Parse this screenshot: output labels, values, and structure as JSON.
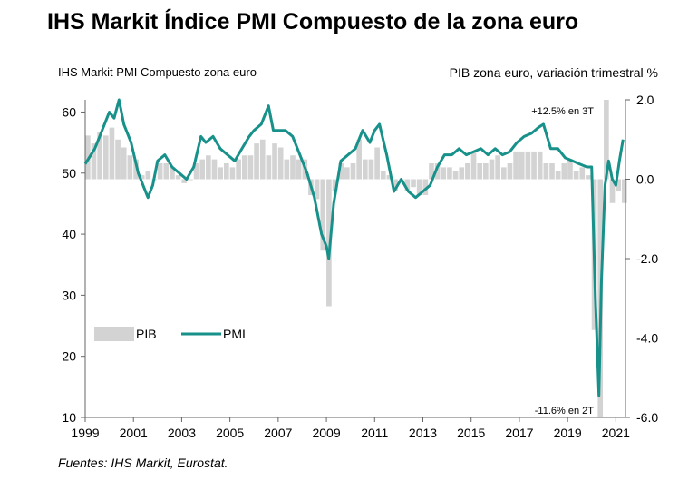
{
  "title": "IHS Markit Índice PMI Compuesto de la zona euro",
  "left_axis_label": "IHS Markit PMI Compuesto zona euro",
  "right_axis_label": "PIB zona euro, variación trimestral %",
  "source": "Fuentes: IHS Markit, Eurostat.",
  "colors": {
    "pmi": "#17918a",
    "gdp": "#d3d3d3",
    "axis": "#666666"
  },
  "chart_data": {
    "type": "bar+line",
    "x_ticks": [
      "1999",
      "2001",
      "2003",
      "2005",
      "2007",
      "2009",
      "2011",
      "2013",
      "2015",
      "2017",
      "2019",
      "2021"
    ],
    "y_left": {
      "ticks": [
        "60",
        "50",
        "40",
        "30",
        "20",
        "10"
      ],
      "range": [
        10,
        62
      ]
    },
    "y_right": {
      "ticks": [
        "2.0",
        "0.0",
        "-2.0",
        "-4.0",
        "-6.0"
      ],
      "range": [
        -6.0,
        2.0
      ]
    },
    "legend": [
      {
        "key": "gdp",
        "label": "PIB"
      },
      {
        "key": "pmi",
        "label": "PMI"
      }
    ],
    "annotations": [
      {
        "text": "+12.5% en 3T"
      },
      {
        "text": "-11.6% en 2T"
      }
    ],
    "series": [
      {
        "key": "pmi",
        "axis": "left",
        "x": [
          1999.0,
          1999.4,
          1999.8,
          2000.0,
          2000.2,
          2000.4,
          2000.6,
          2000.9,
          2001.2,
          2001.6,
          2001.8,
          2002.0,
          2002.3,
          2002.6,
          2002.9,
          2003.2,
          2003.5,
          2003.8,
          2004.0,
          2004.3,
          2004.6,
          2004.9,
          2005.2,
          2005.5,
          2005.8,
          2006.0,
          2006.3,
          2006.6,
          2006.8,
          2007.0,
          2007.3,
          2007.6,
          2007.9,
          2008.2,
          2008.5,
          2008.8,
          2009.0,
          2009.1,
          2009.3,
          2009.6,
          2009.9,
          2010.2,
          2010.5,
          2010.8,
          2011.0,
          2011.2,
          2011.5,
          2011.8,
          2012.1,
          2012.4,
          2012.7,
          2013.0,
          2013.3,
          2013.6,
          2013.9,
          2014.2,
          2014.5,
          2014.8,
          2015.1,
          2015.4,
          2015.7,
          2016.0,
          2016.3,
          2016.6,
          2016.9,
          2017.2,
          2017.5,
          2017.8,
          2018.0,
          2018.3,
          2018.6,
          2018.9,
          2019.2,
          2019.5,
          2019.8,
          2020.0,
          2020.15,
          2020.3,
          2020.4,
          2020.55,
          2020.7,
          2020.85,
          2021.0,
          2021.15,
          2021.3
        ],
        "values": [
          51.5,
          54,
          58,
          60,
          59,
          62,
          58,
          55,
          50,
          46,
          48,
          52,
          53,
          51,
          50,
          49,
          51,
          56,
          55,
          56,
          54,
          53,
          52,
          54,
          56,
          57,
          58,
          61,
          57,
          57,
          57,
          56,
          53,
          50,
          46,
          40,
          38,
          36,
          45,
          52,
          53,
          54,
          57,
          55,
          57,
          58,
          53,
          47,
          49,
          47,
          46,
          47,
          48,
          51,
          53,
          53,
          54,
          53,
          53.5,
          54,
          53,
          54,
          53,
          53.5,
          55,
          56,
          56.5,
          57.5,
          58,
          54,
          54,
          52.5,
          52,
          51.5,
          51,
          51,
          30,
          13.6,
          32,
          48,
          52,
          49,
          48,
          52,
          55.5
        ]
      },
      {
        "key": "gdp",
        "axis": "right",
        "x": [
          1999.0,
          1999.25,
          1999.5,
          1999.75,
          2000.0,
          2000.25,
          2000.5,
          2000.75,
          2001.0,
          2001.25,
          2001.5,
          2001.75,
          2002.0,
          2002.25,
          2002.5,
          2002.75,
          2003.0,
          2003.25,
          2003.5,
          2003.75,
          2004.0,
          2004.25,
          2004.5,
          2004.75,
          2005.0,
          2005.25,
          2005.5,
          2005.75,
          2006.0,
          2006.25,
          2006.5,
          2006.75,
          2007.0,
          2007.25,
          2007.5,
          2007.75,
          2008.0,
          2008.25,
          2008.5,
          2008.75,
          2009.0,
          2009.25,
          2009.5,
          2009.75,
          2010.0,
          2010.25,
          2010.5,
          2010.75,
          2011.0,
          2011.25,
          2011.5,
          2011.75,
          2012.0,
          2012.25,
          2012.5,
          2012.75,
          2013.0,
          2013.25,
          2013.5,
          2013.75,
          2014.0,
          2014.25,
          2014.5,
          2014.75,
          2015.0,
          2015.25,
          2015.5,
          2015.75,
          2016.0,
          2016.25,
          2016.5,
          2016.75,
          2017.0,
          2017.25,
          2017.5,
          2017.75,
          2018.0,
          2018.25,
          2018.5,
          2018.75,
          2019.0,
          2019.25,
          2019.5,
          2019.75,
          2020.0,
          2020.25,
          2020.5,
          2020.75,
          2021.0,
          2021.25
        ],
        "values": [
          1.1,
          0.9,
          1.2,
          1.1,
          1.3,
          1.0,
          0.8,
          0.6,
          0.5,
          0.1,
          0.2,
          0.0,
          0.4,
          0.4,
          0.3,
          0.1,
          -0.1,
          0.0,
          0.4,
          0.5,
          0.6,
          0.5,
          0.3,
          0.4,
          0.3,
          0.5,
          0.6,
          0.6,
          0.9,
          1.0,
          0.6,
          0.9,
          0.8,
          0.5,
          0.6,
          0.5,
          0.5,
          -0.4,
          -0.5,
          -1.8,
          -3.2,
          -0.3,
          0.4,
          0.3,
          0.4,
          1.0,
          0.5,
          0.5,
          0.8,
          0.2,
          0.1,
          -0.3,
          -0.1,
          -0.3,
          -0.2,
          -0.4,
          -0.4,
          0.4,
          0.4,
          0.3,
          0.3,
          0.2,
          0.3,
          0.4,
          0.7,
          0.4,
          0.4,
          0.5,
          0.6,
          0.3,
          0.4,
          0.7,
          0.7,
          0.7,
          0.7,
          0.7,
          0.4,
          0.4,
          0.2,
          0.4,
          0.5,
          0.2,
          0.3,
          0.1,
          -3.8,
          -6.0,
          2.0,
          -0.6,
          -0.3,
          -0.6
        ]
      }
    ]
  }
}
